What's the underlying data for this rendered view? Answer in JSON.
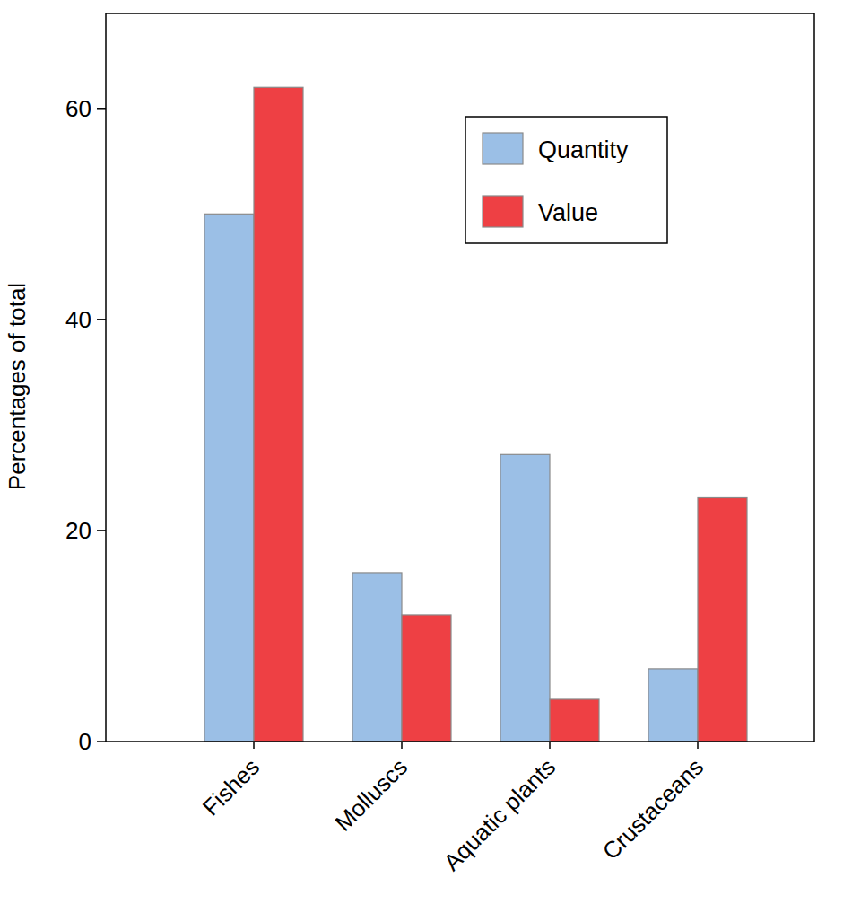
{
  "chart_data": {
    "type": "bar",
    "categories": [
      "Fishes",
      "Molluscs",
      "Aquatic plants",
      "Crustaceans"
    ],
    "series": [
      {
        "name": "Quantity",
        "color": "#9bbfe6",
        "values": [
          50,
          16,
          27.2,
          6.9
        ]
      },
      {
        "name": "Value",
        "color": "#ee4044",
        "values": [
          62,
          12,
          4,
          23.1
        ]
      }
    ],
    "y_label": "Percentages of total",
    "ylim": [
      0,
      69
    ],
    "yticks": [
      0,
      20,
      40,
      60
    ],
    "grid": false,
    "legend": "top-right"
  }
}
